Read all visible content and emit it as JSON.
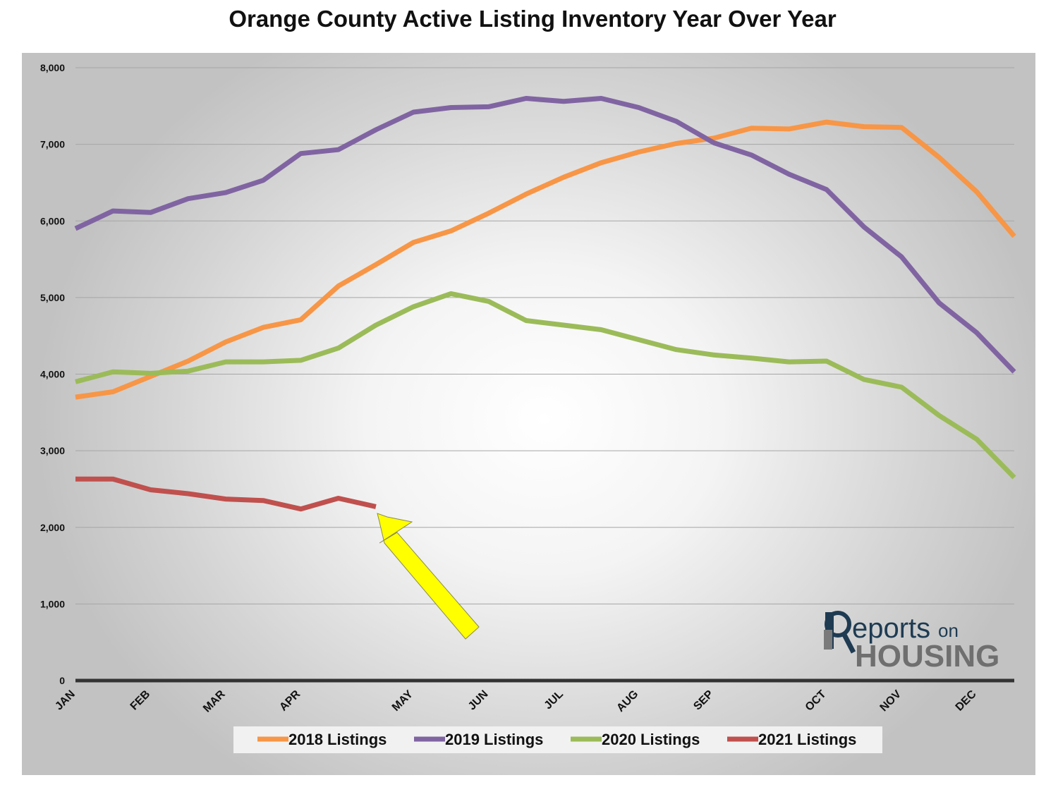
{
  "chart_data": {
    "type": "line",
    "title": "Orange County Active Listing Inventory Year Over Year",
    "xlabel": "",
    "ylabel": "",
    "ylim": [
      0,
      8000
    ],
    "yticks": [
      0,
      1000,
      2000,
      3000,
      4000,
      5000,
      6000,
      7000,
      8000
    ],
    "ytick_labels": [
      "0",
      "1,000",
      "2,000",
      "3,000",
      "4,000",
      "5,000",
      "6,000",
      "7,000",
      "8,000"
    ],
    "x_tick_labels": [
      {
        "label": "JAN",
        "week": 0
      },
      {
        "label": "FEB",
        "week": 2
      },
      {
        "label": "MAR",
        "week": 4
      },
      {
        "label": "APR",
        "week": 6
      },
      {
        "label": "MAY",
        "week": 9
      },
      {
        "label": "JUN",
        "week": 11
      },
      {
        "label": "JUL",
        "week": 13
      },
      {
        "label": "AUG",
        "week": 15
      },
      {
        "label": "SEP",
        "week": 17
      },
      {
        "label": "OCT",
        "week": 20
      },
      {
        "label": "NOV",
        "week": 22
      },
      {
        "label": "DEC",
        "week": 24
      }
    ],
    "x_max_week": 25,
    "grid": true,
    "legend_position": "bottom",
    "series": [
      {
        "name": "2018 Listings",
        "color": "#f79646",
        "values": [
          3700,
          3770,
          3970,
          4170,
          4420,
          4610,
          4710,
          5150,
          5430,
          5720,
          5870,
          6100,
          6350,
          6570,
          6760,
          6900,
          7010,
          7080,
          7210,
          7200,
          7290,
          7230,
          7220,
          6830,
          6380,
          5800
        ]
      },
      {
        "name": "2019 Listings",
        "color": "#8064a2",
        "values": [
          5900,
          6130,
          6110,
          6290,
          6370,
          6530,
          6880,
          6930,
          7190,
          7420,
          7480,
          7490,
          7600,
          7560,
          7600,
          7480,
          7300,
          7020,
          6860,
          6610,
          6410,
          5920,
          5530,
          4930,
          4540,
          4030
        ]
      },
      {
        "name": "2020 Listings",
        "color": "#9bbb59",
        "values": [
          3900,
          4030,
          4010,
          4040,
          4160,
          4160,
          4180,
          4340,
          4640,
          4880,
          5050,
          4950,
          4700,
          4640,
          4580,
          4450,
          4320,
          4250,
          4210,
          4160,
          4170,
          3930,
          3830,
          3460,
          3150,
          2650
        ]
      },
      {
        "name": "2021 Listings",
        "color": "#c0504d",
        "values": [
          2630,
          2630,
          2490,
          2440,
          2370,
          2350,
          2240,
          2380,
          2270
        ]
      }
    ],
    "annotations": [
      {
        "type": "arrow",
        "color": "#ffff00",
        "points_to": "end of 2021 Listings"
      }
    ]
  },
  "logo": {
    "main": "eports",
    "on": "on",
    "housing": "HOUSING"
  }
}
